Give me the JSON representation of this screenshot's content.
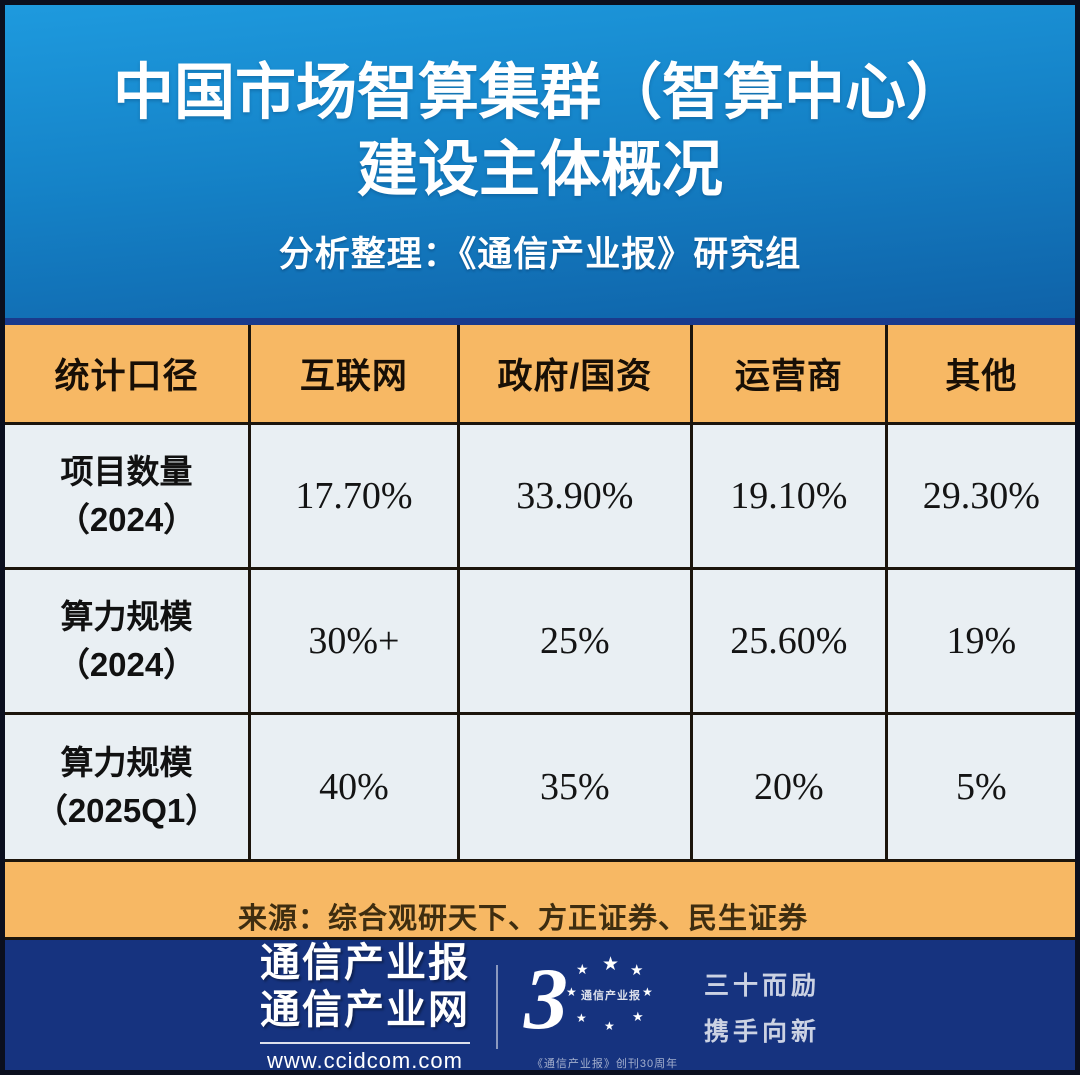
{
  "header": {
    "title_line1": "中国市场智算集群（智算中心）",
    "title_line2": "建设主体概况",
    "subtitle": "分析整理：《通信产业报》研究组"
  },
  "table": {
    "columns": [
      "统计口径",
      "互联网",
      "政府/国资",
      "运营商",
      "其他"
    ],
    "rows": [
      {
        "label_line1": "项目数量",
        "label_line2": "（2024）",
        "values": [
          "17.70%",
          "33.90%",
          "19.10%",
          "29.30%"
        ]
      },
      {
        "label_line1": "算力规模",
        "label_line2": "（2024）",
        "values": [
          "30%+",
          "25%",
          "25.60%",
          "19%"
        ]
      },
      {
        "label_line1": "算力规模",
        "label_line2": "（2025Q1）",
        "values": [
          "40%",
          "35%",
          "20%",
          "5%"
        ]
      }
    ],
    "source": "来源：综合观研天下、方正证券、民生证券"
  },
  "footer": {
    "brand_line1": "通信产业报",
    "brand_line2": "通信产业网",
    "website": "www.ccidcom.com",
    "logo_three": "3",
    "star_glyph": "★",
    "logo_inner_text": "通信产业报",
    "logo_caption": "《通信产业报》创刊30周年",
    "slogan_line1": "三十而励",
    "slogan_line2": "携手向新"
  },
  "colors": {
    "header_gradient_top": "#1e9ade",
    "header_gradient_bottom": "#0f62a8",
    "navy_strip": "#1a3a8c",
    "footer_navy": "#16337f",
    "orange": "#f7b864",
    "row_light": "#e9eff3",
    "table_line": "#1c150c",
    "frame_border": "#0b0f1e"
  },
  "chart_data": {
    "type": "table",
    "title": "中国市场智算集群（智算中心）建设主体概况",
    "subtitle": "分析整理：《通信产业报》研究组",
    "columns": [
      "统计口径",
      "互联网",
      "政府/国资",
      "运营商",
      "其他"
    ],
    "rows": [
      [
        "项目数量（2024）",
        "17.70%",
        "33.90%",
        "19.10%",
        "29.30%"
      ],
      [
        "算力规模（2024）",
        "30%+",
        "25%",
        "25.60%",
        "19%"
      ],
      [
        "算力规模（2025Q1）",
        "40%",
        "35%",
        "20%",
        "5%"
      ]
    ],
    "numeric_values_percent": {
      "项目数量_2024": {
        "互联网": 17.7,
        "政府/国资": 33.9,
        "运营商": 19.1,
        "其他": 29.3
      },
      "算力规模_2024": {
        "互联网": 30.0,
        "政府/国资": 25.0,
        "运营商": 25.6,
        "其他": 19.0
      },
      "算力规模_2025Q1": {
        "互联网": 40.0,
        "政府/国资": 35.0,
        "运营商": 20.0,
        "其他": 5.0
      }
    },
    "source": "来源：综合观研天下、方正证券、民生证券"
  }
}
